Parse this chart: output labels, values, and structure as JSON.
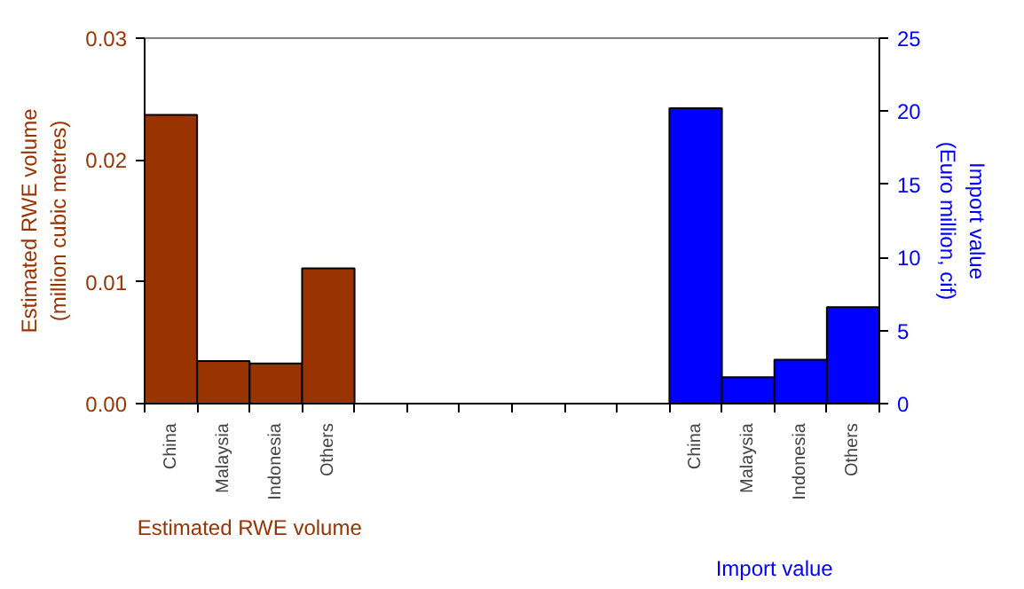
{
  "chart_data": {
    "type": "bar",
    "categories": [
      "China",
      "Malaysia",
      "Indonesia",
      "Others",
      null,
      null,
      null,
      null,
      null,
      null,
      "China",
      "Malaysia",
      "Indonesia",
      "Others"
    ],
    "ylabel": "Estimated RWE volume\n(million cubic metres)",
    "y2label": "Import value\n(Euro million, cif)",
    "ylim": [
      0,
      0.03
    ],
    "yticks": [
      {
        "value": 0,
        "label": "0.00"
      },
      {
        "value": 0.01,
        "label": "0.01"
      },
      {
        "value": 0.02,
        "label": "0.02"
      },
      {
        "value": 0.03,
        "label": "0.03"
      }
    ],
    "y2lim": [
      0,
      25
    ],
    "y2ticks": [
      0,
      5,
      10,
      15,
      20,
      25
    ],
    "grid": false,
    "series": [
      {
        "name": "Estimated RWE volume",
        "color": "#993300",
        "values": [
          0.0237,
          0.0035,
          0.0033,
          0.0111,
          null,
          null,
          null,
          null,
          null,
          null,
          null,
          null,
          null,
          null
        ]
      },
      {
        "name": "Import value",
        "color": "#0000ff",
        "axis": "y2",
        "values": [
          null,
          null,
          null,
          null,
          null,
          null,
          null,
          null,
          null,
          null,
          20.2,
          1.8,
          3.0,
          6.6
        ]
      }
    ]
  }
}
